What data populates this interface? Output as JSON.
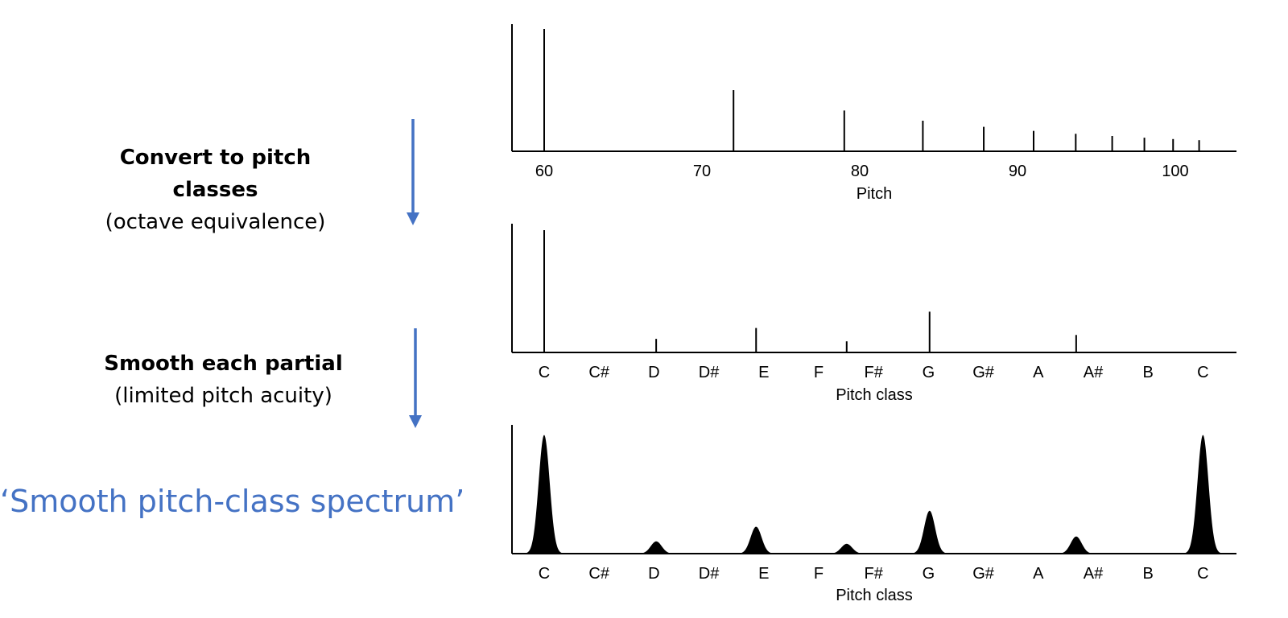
{
  "steps": [
    {
      "title": "Convert to pitch classes",
      "subtitle": "(octave equivalence)"
    },
    {
      "title": "Smooth each partial",
      "subtitle": "(limited pitch acuity)"
    }
  ],
  "final_label": "‘Smooth pitch-class spectrum’",
  "colors": {
    "accent": "#4472c4",
    "ink": "#000000"
  },
  "chart_data": [
    {
      "type": "bar",
      "title": "",
      "xlabel": "Pitch",
      "ylabel": "",
      "xlim": [
        58,
        104
      ],
      "ylim": [
        0,
        1
      ],
      "xticks": [
        60,
        70,
        80,
        90,
        100
      ],
      "x": [
        60,
        72,
        79.02,
        84,
        87.86,
        91.02,
        93.69,
        96,
        98.04,
        99.86,
        101.51
      ],
      "values": [
        1.0,
        0.5,
        0.3333,
        0.25,
        0.2,
        0.1667,
        0.1429,
        0.125,
        0.1111,
        0.1,
        0.0909
      ],
      "grid": false
    },
    {
      "type": "bar",
      "title": "",
      "xlabel": "Pitch class",
      "ylabel": "",
      "categories": [
        "C",
        "C#",
        "D",
        "D#",
        "E",
        "F",
        "F#",
        "G",
        "G#",
        "A",
        "A#",
        "B",
        "C"
      ],
      "xlim": [
        -0.6,
        12.6
      ],
      "ylim": [
        0,
        1
      ],
      "x": [
        0,
        2.04,
        3.86,
        5.51,
        7.02,
        9.69
      ],
      "values": [
        1.0,
        0.1111,
        0.2,
        0.0909,
        0.3333,
        0.1429
      ],
      "grid": false
    },
    {
      "type": "area",
      "title": "",
      "xlabel": "Pitch class",
      "ylabel": "",
      "categories": [
        "C",
        "C#",
        "D",
        "D#",
        "E",
        "F",
        "F#",
        "G",
        "G#",
        "A",
        "A#",
        "B",
        "C"
      ],
      "xlim": [
        -0.6,
        12.6
      ],
      "ylim": [
        0,
        1
      ],
      "peaks": [
        {
          "center": 0,
          "height": 0.97
        },
        {
          "center": 2.04,
          "height": 0.1
        },
        {
          "center": 3.86,
          "height": 0.22
        },
        {
          "center": 5.51,
          "height": 0.08
        },
        {
          "center": 7.02,
          "height": 0.35
        },
        {
          "center": 9.69,
          "height": 0.14
        },
        {
          "center": 12,
          "height": 0.97
        }
      ],
      "grid": false
    }
  ]
}
